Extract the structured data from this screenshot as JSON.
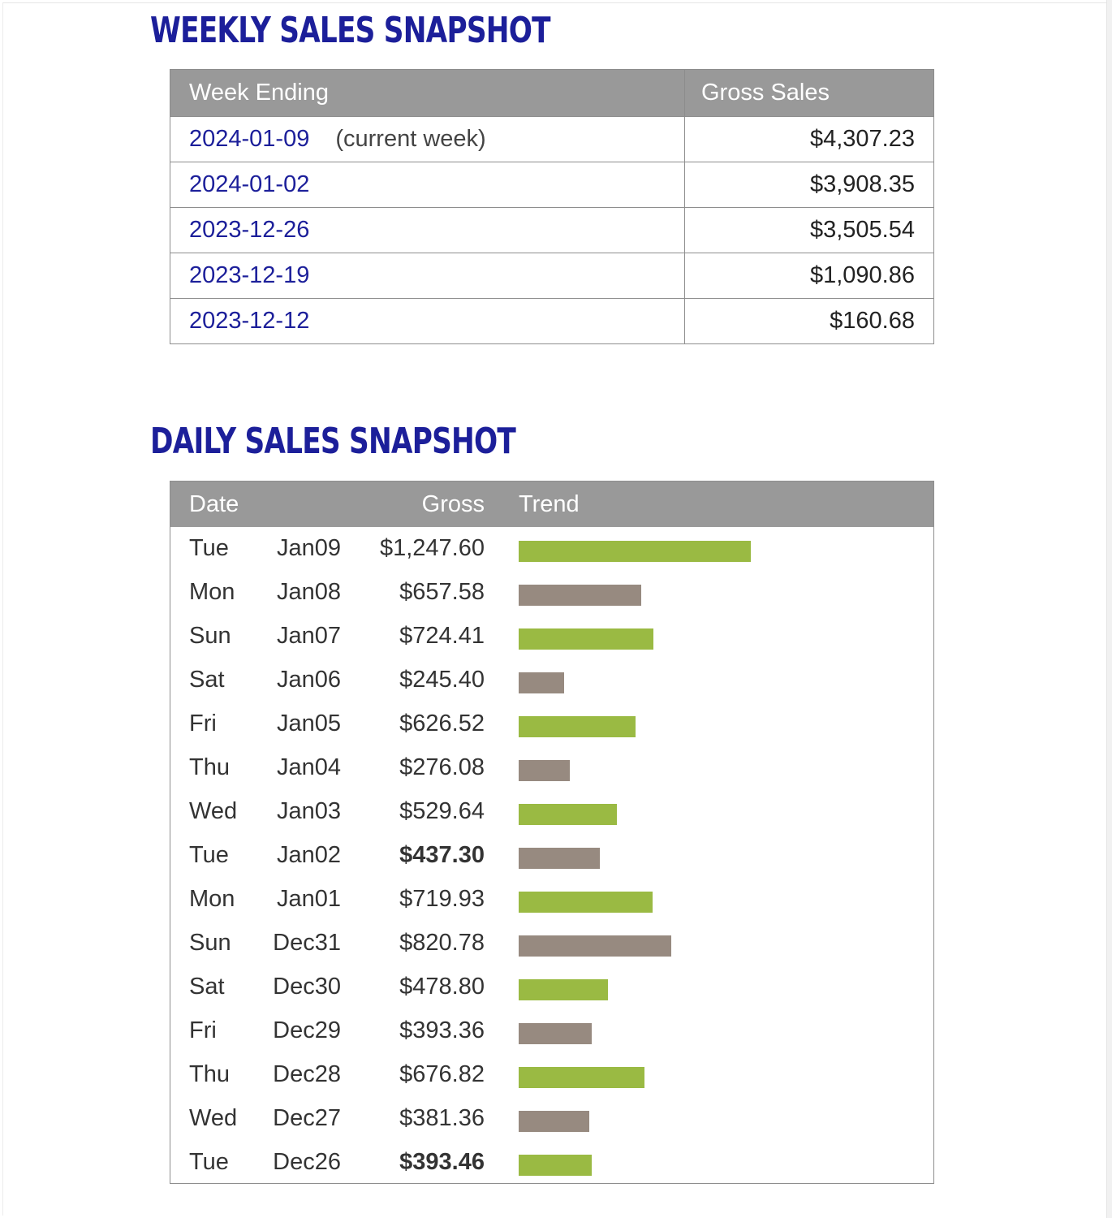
{
  "weekly": {
    "title": "WEEKLY SALES SNAPSHOT",
    "headers": {
      "week": "Week Ending",
      "gross": "Gross Sales"
    },
    "rows": [
      {
        "week": "2024-01-09",
        "note": "(current week)",
        "gross": "$4,307.23"
      },
      {
        "week": "2024-01-02",
        "note": "",
        "gross": "$3,908.35"
      },
      {
        "week": "2023-12-26",
        "note": "",
        "gross": "$3,505.54"
      },
      {
        "week": "2023-12-19",
        "note": "",
        "gross": "$1,090.86"
      },
      {
        "week": "2023-12-12",
        "note": "",
        "gross": "$160.68"
      }
    ]
  },
  "daily": {
    "title": "DAILY SALES SNAPSHOT",
    "headers": {
      "date": "Date",
      "gross": "Gross",
      "trend": "Trend"
    },
    "rows": [
      {
        "dow": "Tue",
        "date": "Jan09",
        "gross": "$1,247.60",
        "value": 1247.6,
        "bold": false,
        "color": "#9aba43"
      },
      {
        "dow": "Mon",
        "date": "Jan08",
        "gross": "$657.58",
        "value": 657.58,
        "bold": false,
        "color": "#978a80"
      },
      {
        "dow": "Sun",
        "date": "Jan07",
        "gross": "$724.41",
        "value": 724.41,
        "bold": false,
        "color": "#9aba43"
      },
      {
        "dow": "Sat",
        "date": "Jan06",
        "gross": "$245.40",
        "value": 245.4,
        "bold": false,
        "color": "#978a80"
      },
      {
        "dow": "Fri",
        "date": "Jan05",
        "gross": "$626.52",
        "value": 626.52,
        "bold": false,
        "color": "#9aba43"
      },
      {
        "dow": "Thu",
        "date": "Jan04",
        "gross": "$276.08",
        "value": 276.08,
        "bold": false,
        "color": "#978a80"
      },
      {
        "dow": "Wed",
        "date": "Jan03",
        "gross": "$529.64",
        "value": 529.64,
        "bold": false,
        "color": "#9aba43"
      },
      {
        "dow": "Tue",
        "date": "Jan02",
        "gross": "$437.30",
        "value": 437.3,
        "bold": true,
        "color": "#978a80"
      },
      {
        "dow": "Mon",
        "date": "Jan01",
        "gross": "$719.93",
        "value": 719.93,
        "bold": false,
        "color": "#9aba43"
      },
      {
        "dow": "Sun",
        "date": "Dec31",
        "gross": "$820.78",
        "value": 820.78,
        "bold": false,
        "color": "#978a80"
      },
      {
        "dow": "Sat",
        "date": "Dec30",
        "gross": "$478.80",
        "value": 478.8,
        "bold": false,
        "color": "#9aba43"
      },
      {
        "dow": "Fri",
        "date": "Dec29",
        "gross": "$393.36",
        "value": 393.36,
        "bold": false,
        "color": "#978a80"
      },
      {
        "dow": "Thu",
        "date": "Dec28",
        "gross": "$676.82",
        "value": 676.82,
        "bold": false,
        "color": "#9aba43"
      },
      {
        "dow": "Wed",
        "date": "Dec27",
        "gross": "$381.36",
        "value": 381.36,
        "bold": false,
        "color": "#978a80"
      },
      {
        "dow": "Tue",
        "date": "Dec26",
        "gross": "$393.46",
        "value": 393.46,
        "bold": true,
        "color": "#9aba43"
      }
    ]
  },
  "colors": {
    "title": "#1c1f9a",
    "header_bg": "#999999",
    "bar_green": "#9aba43",
    "bar_taupe": "#978a80"
  }
}
